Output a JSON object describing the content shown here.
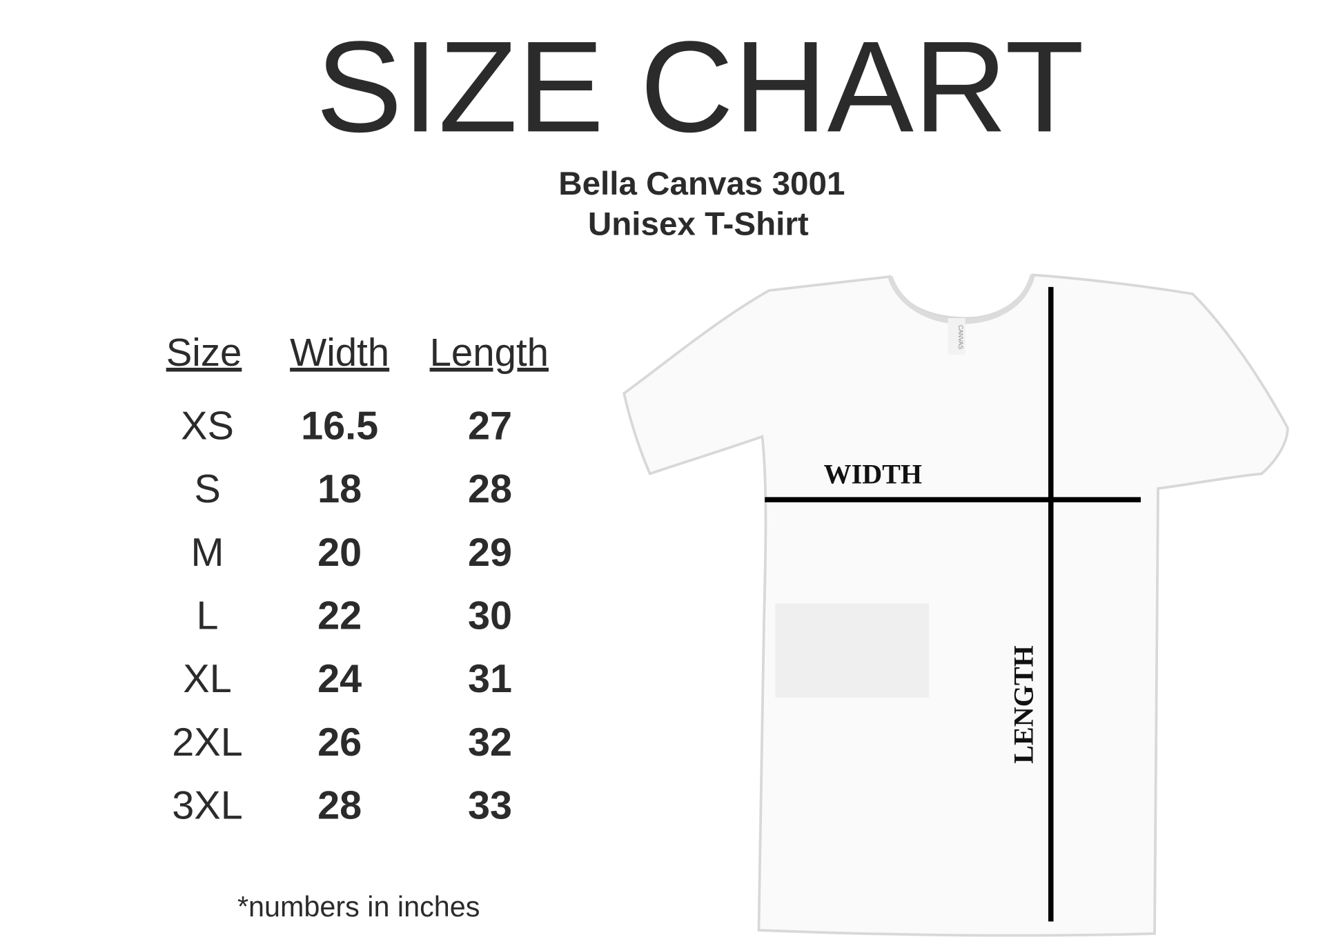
{
  "header": {
    "title": "SIZE CHART",
    "subtitle": [
      "Bella Canvas 3001",
      "Unisex T-Shirt"
    ]
  },
  "table": {
    "columns": [
      "Size",
      "Width",
      "Length"
    ],
    "rows": [
      [
        "XS",
        "16.5",
        "27"
      ],
      [
        "S",
        "18",
        "28"
      ],
      [
        "M",
        "20",
        "29"
      ],
      [
        "L",
        "22",
        "30"
      ],
      [
        "XL",
        "24",
        "31"
      ],
      [
        "2XL",
        "26",
        "32"
      ],
      [
        "3XL",
        "28",
        "33"
      ]
    ]
  },
  "footnote": "*numbers in inches",
  "diagram": {
    "tag": "CANVAS",
    "width_label": "WIDTH",
    "length_label": "LENGTH"
  }
}
